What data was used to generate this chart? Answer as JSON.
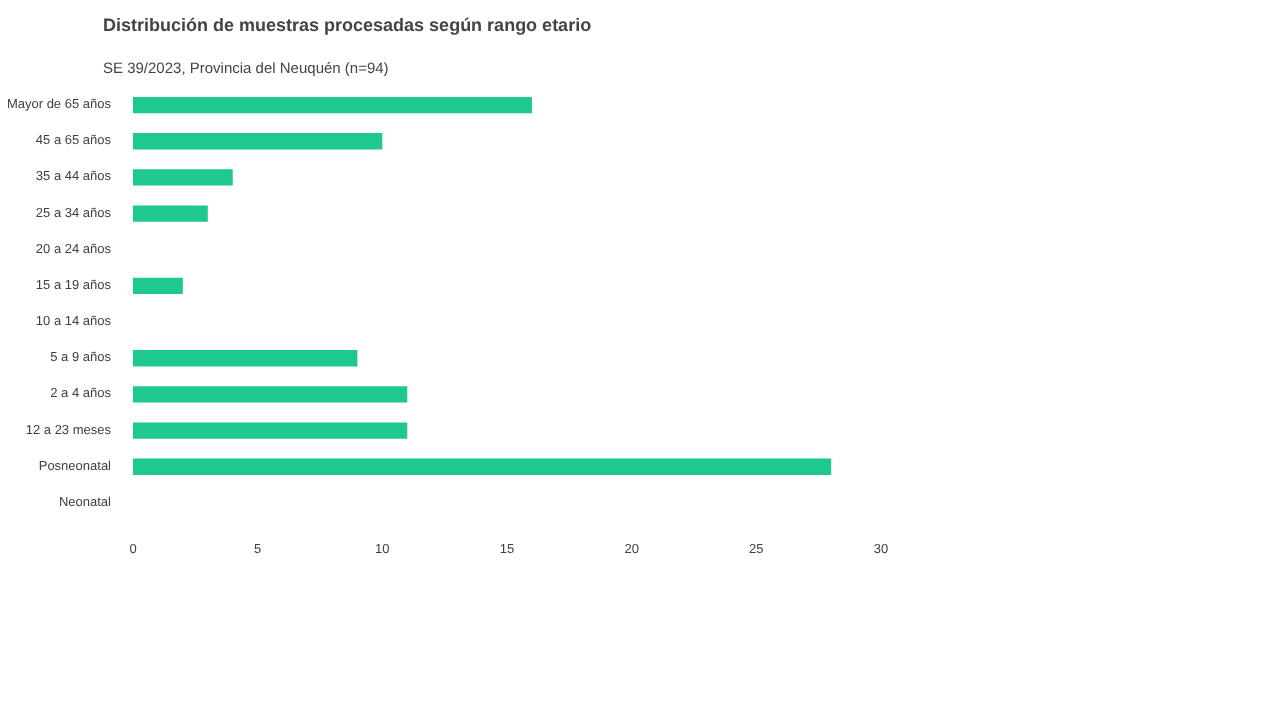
{
  "chart_data": {
    "type": "bar",
    "orientation": "horizontal",
    "title": "Distribución de muestras procesadas según rango etario",
    "subtitle": "SE 39/2023, Provincia del Neuquén (n=94)",
    "categories": [
      "Mayor de 65 años",
      "45 a 65 años",
      "35 a 44 años",
      "25 a 34 años",
      "20 a 24 años",
      "15 a 19 años",
      "10 a 14 años",
      "5 a 9 años",
      "2 a 4 años",
      "12 a 23 meses",
      "Posneonatal",
      "Neonatal"
    ],
    "values": [
      16,
      10,
      4,
      3,
      0,
      2,
      0,
      9,
      11,
      11,
      28,
      0
    ],
    "color": "#1ec88f",
    "xlim": [
      0,
      30
    ],
    "xticks": [
      0,
      5,
      10,
      15,
      20,
      25,
      30
    ],
    "grid": false
  }
}
